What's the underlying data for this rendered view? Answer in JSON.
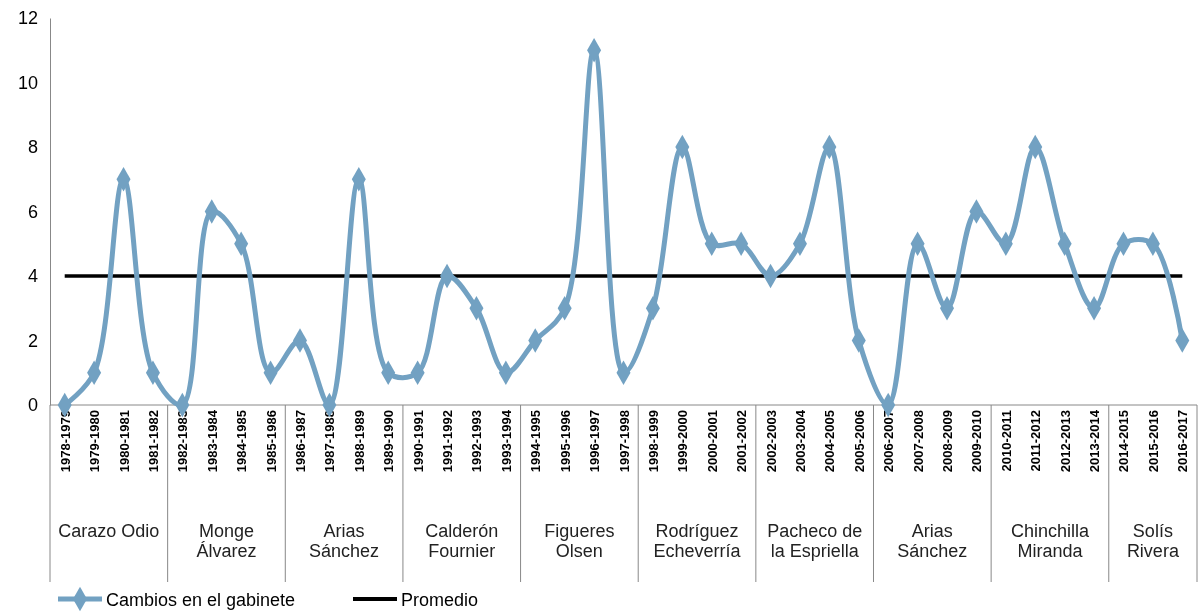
{
  "chart_data": {
    "type": "line",
    "categories": [
      "1978-1979",
      "1979-1980",
      "1980-1981",
      "1981-1982",
      "1982-1983",
      "1983-1984",
      "1984-1985",
      "1985-1986",
      "1986-1987",
      "1987-1988",
      "1988-1989",
      "1989-1990",
      "1990-1991",
      "1991-1992",
      "1992-1993",
      "1993-1994",
      "1994-1995",
      "1995-1996",
      "1996-1997",
      "1997-1998",
      "1998-1999",
      "1999-2000",
      "2000-2001",
      "2001-2002",
      "2002-2003",
      "2003-2004",
      "2004-2005",
      "2005-2006",
      "2006-2007",
      "2007-2008",
      "2008-2009",
      "2009-2010",
      "2010-2011",
      "2011-2012",
      "2012-2013",
      "2013-2014",
      "2014-2015",
      "2015-2016",
      "2016-2017"
    ],
    "series": [
      {
        "name": "Cambios en el gabinete",
        "color": "#72a1c2",
        "values": [
          0,
          1,
          7,
          1,
          0,
          6,
          5,
          1,
          2,
          0,
          7,
          1,
          1,
          4,
          3,
          1,
          2,
          3,
          11,
          1,
          3,
          8,
          5,
          5,
          4,
          5,
          8,
          2,
          0,
          5,
          3,
          6,
          5,
          8,
          5,
          3,
          5,
          5,
          2
        ]
      }
    ],
    "ref_lines": [
      {
        "axis": "y",
        "value": 4,
        "label": "Promedio",
        "color": "#000000"
      }
    ],
    "annotations": [
      "Carazo Odio",
      "Monge Álvarez",
      "Arias Sánchez",
      "Calderón Fournier",
      "Figueres Olsen",
      "Rodríguez Echeverría",
      "Pacheco de la Espriella",
      "Arias Sánchez",
      "Chinchilla Miranda",
      "Solís Rivera"
    ],
    "ylim": [
      0,
      12
    ],
    "yticks": [
      0,
      2,
      4,
      6,
      8,
      10,
      12
    ],
    "marker": "diamond",
    "legend": "bottom left"
  }
}
